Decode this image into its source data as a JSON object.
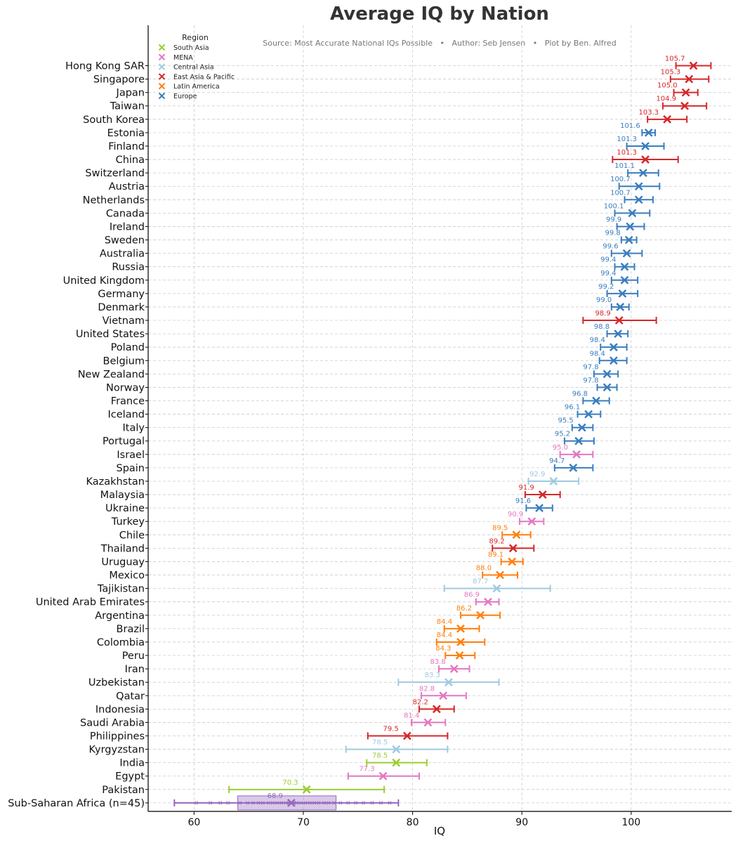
{
  "chart_data": {
    "type": "scatter",
    "title": "Average IQ by Nation",
    "subtitle": "Source: Most Accurate National IQs Possible   •   Author: Seb Jensen   •   Plot by Ben. Alfred",
    "xlabel": "IQ",
    "ylabel": "",
    "xlim": [
      55.8,
      109.2
    ],
    "xticks": [
      60,
      70,
      80,
      90,
      100
    ],
    "grid": true,
    "legend": {
      "title": "Region",
      "placement": "top-left",
      "entries": [
        {
          "name": "South Asia",
          "color": "#9acd32"
        },
        {
          "name": "MENA",
          "color": "#e377c2"
        },
        {
          "name": "Central Asia",
          "color": "#9ecae1"
        },
        {
          "name": "East Asia & Pacific",
          "color": "#d62728"
        },
        {
          "name": "Latin America",
          "color": "#ff7f0e"
        },
        {
          "name": "Europe",
          "color": "#3a7dbf"
        }
      ]
    },
    "region_colors": {
      "South Asia": "#9acd32",
      "MENA": "#e377c2",
      "Central Asia": "#9ecae1",
      "East Asia & Pacific": "#d62728",
      "Latin America": "#ff7f0e",
      "Europe": "#3a7dbf",
      "Sub-Saharan Africa": "#9467bd"
    },
    "points": [
      {
        "country": "Hong Kong SAR",
        "region": "East Asia & Pacific",
        "iq": 105.7,
        "low": 104.1,
        "high": 107.3
      },
      {
        "country": "Singapore",
        "region": "East Asia & Pacific",
        "iq": 105.3,
        "low": 103.6,
        "high": 107.1
      },
      {
        "country": "Japan",
        "region": "East Asia & Pacific",
        "iq": 105.0,
        "low": 103.9,
        "high": 106.1
      },
      {
        "country": "Taiwan",
        "region": "East Asia & Pacific",
        "iq": 104.9,
        "low": 102.9,
        "high": 106.9
      },
      {
        "country": "South Korea",
        "region": "East Asia & Pacific",
        "iq": 103.3,
        "low": 101.5,
        "high": 105.1
      },
      {
        "country": "Estonia",
        "region": "Europe",
        "iq": 101.6,
        "low": 101.0,
        "high": 102.2
      },
      {
        "country": "Finland",
        "region": "Europe",
        "iq": 101.3,
        "low": 99.6,
        "high": 103.0
      },
      {
        "country": "China",
        "region": "East Asia & Pacific",
        "iq": 101.3,
        "low": 98.3,
        "high": 104.3
      },
      {
        "country": "Switzerland",
        "region": "Europe",
        "iq": 101.1,
        "low": 99.7,
        "high": 102.5
      },
      {
        "country": "Austria",
        "region": "Europe",
        "iq": 100.7,
        "low": 98.9,
        "high": 102.6
      },
      {
        "country": "Netherlands",
        "region": "Europe",
        "iq": 100.7,
        "low": 99.4,
        "high": 102.0
      },
      {
        "country": "Canada",
        "region": "Europe",
        "iq": 100.1,
        "low": 98.5,
        "high": 101.7
      },
      {
        "country": "Ireland",
        "region": "Europe",
        "iq": 99.9,
        "low": 98.7,
        "high": 101.2
      },
      {
        "country": "Sweden",
        "region": "Europe",
        "iq": 99.8,
        "low": 99.1,
        "high": 100.5
      },
      {
        "country": "Australia",
        "region": "Europe",
        "iq": 99.6,
        "low": 98.2,
        "high": 101.0
      },
      {
        "country": "Russia",
        "region": "Europe",
        "iq": 99.4,
        "low": 98.5,
        "high": 100.3
      },
      {
        "country": "United Kingdom",
        "region": "Europe",
        "iq": 99.4,
        "low": 98.2,
        "high": 100.6
      },
      {
        "country": "Germany",
        "region": "Europe",
        "iq": 99.2,
        "low": 97.8,
        "high": 100.6
      },
      {
        "country": "Denmark",
        "region": "Europe",
        "iq": 99.0,
        "low": 98.2,
        "high": 99.8
      },
      {
        "country": "Vietnam",
        "region": "East Asia & Pacific",
        "iq": 98.9,
        "low": 95.6,
        "high": 102.3
      },
      {
        "country": "United States",
        "region": "Europe",
        "iq": 98.8,
        "low": 97.8,
        "high": 99.7
      },
      {
        "country": "Poland",
        "region": "Europe",
        "iq": 98.4,
        "low": 97.2,
        "high": 99.6
      },
      {
        "country": "Belgium",
        "region": "Europe",
        "iq": 98.4,
        "low": 97.1,
        "high": 99.6
      },
      {
        "country": "New Zealand",
        "region": "Europe",
        "iq": 97.8,
        "low": 96.6,
        "high": 98.8
      },
      {
        "country": "Norway",
        "region": "Europe",
        "iq": 97.8,
        "low": 96.9,
        "high": 98.7
      },
      {
        "country": "France",
        "region": "Europe",
        "iq": 96.8,
        "low": 95.6,
        "high": 98.0
      },
      {
        "country": "Iceland",
        "region": "Europe",
        "iq": 96.1,
        "low": 95.1,
        "high": 97.2
      },
      {
        "country": "Italy",
        "region": "Europe",
        "iq": 95.5,
        "low": 94.6,
        "high": 96.5
      },
      {
        "country": "Portugal",
        "region": "Europe",
        "iq": 95.2,
        "low": 93.9,
        "high": 96.6
      },
      {
        "country": "Israel",
        "region": "MENA",
        "iq": 95.0,
        "low": 93.5,
        "high": 96.5
      },
      {
        "country": "Spain",
        "region": "Europe",
        "iq": 94.7,
        "low": 93.0,
        "high": 96.5
      },
      {
        "country": "Kazakhstan",
        "region": "Central Asia",
        "iq": 92.9,
        "low": 90.6,
        "high": 95.2
      },
      {
        "country": "Malaysia",
        "region": "East Asia & Pacific",
        "iq": 91.9,
        "low": 90.3,
        "high": 93.5
      },
      {
        "country": "Ukraine",
        "region": "Europe",
        "iq": 91.6,
        "low": 90.4,
        "high": 92.8
      },
      {
        "country": "Turkey",
        "region": "MENA",
        "iq": 90.9,
        "low": 89.8,
        "high": 92.0
      },
      {
        "country": "Chile",
        "region": "Latin America",
        "iq": 89.5,
        "low": 88.2,
        "high": 90.8
      },
      {
        "country": "Thailand",
        "region": "East Asia & Pacific",
        "iq": 89.2,
        "low": 87.3,
        "high": 91.1
      },
      {
        "country": "Uruguay",
        "region": "Latin America",
        "iq": 89.1,
        "low": 88.1,
        "high": 90.1
      },
      {
        "country": "Mexico",
        "region": "Latin America",
        "iq": 88.0,
        "low": 86.4,
        "high": 89.6
      },
      {
        "country": "Tajikistan",
        "region": "Central Asia",
        "iq": 87.7,
        "low": 82.9,
        "high": 92.6
      },
      {
        "country": "United Arab Emirates",
        "region": "MENA",
        "iq": 86.9,
        "low": 85.8,
        "high": 87.9
      },
      {
        "country": "Argentina",
        "region": "Latin America",
        "iq": 86.2,
        "low": 84.4,
        "high": 88.0
      },
      {
        "country": "Brazil",
        "region": "Latin America",
        "iq": 84.4,
        "low": 82.9,
        "high": 86.1
      },
      {
        "country": "Colombia",
        "region": "Latin America",
        "iq": 84.4,
        "low": 82.2,
        "high": 86.6
      },
      {
        "country": "Peru",
        "region": "Latin America",
        "iq": 84.3,
        "low": 83.0,
        "high": 85.7
      },
      {
        "country": "Iran",
        "region": "MENA",
        "iq": 83.8,
        "low": 82.4,
        "high": 85.2
      },
      {
        "country": "Uzbekistan",
        "region": "Central Asia",
        "iq": 83.3,
        "low": 78.7,
        "high": 87.9
      },
      {
        "country": "Qatar",
        "region": "MENA",
        "iq": 82.8,
        "low": 80.8,
        "high": 84.9
      },
      {
        "country": "Indonesia",
        "region": "East Asia & Pacific",
        "iq": 82.2,
        "low": 80.6,
        "high": 83.8
      },
      {
        "country": "Saudi Arabia",
        "region": "MENA",
        "iq": 81.4,
        "low": 79.9,
        "high": 83.0
      },
      {
        "country": "Philippines",
        "region": "East Asia & Pacific",
        "iq": 79.5,
        "low": 75.9,
        "high": 83.2
      },
      {
        "country": "Kyrgyzstan",
        "region": "Central Asia",
        "iq": 78.5,
        "low": 73.9,
        "high": 83.2
      },
      {
        "country": "India",
        "region": "South Asia",
        "iq": 78.5,
        "low": 75.8,
        "high": 81.3
      },
      {
        "country": "Egypt",
        "region": "MENA",
        "iq": 77.3,
        "low": 74.1,
        "high": 80.6
      },
      {
        "country": "Pakistan",
        "region": "South Asia",
        "iq": 70.3,
        "low": 63.2,
        "high": 77.4
      },
      {
        "country": "Sub-Saharan Africa (n=45)",
        "region": "Sub-Saharan Africa",
        "iq": 68.9,
        "low": 58.2,
        "high": 78.7,
        "box": [
          64.0,
          73.0
        ],
        "sample_points": [
          60.2,
          61.5,
          62.4,
          63.1,
          64.2,
          64.9,
          65.4,
          65.9,
          66.3,
          66.8,
          67.2,
          67.6,
          68.0,
          68.4,
          68.7,
          69.1,
          69.4,
          69.8,
          70.2,
          70.6,
          71.0,
          71.4,
          71.9,
          72.3,
          72.8,
          73.4,
          74.1,
          74.8,
          75.5,
          76.3,
          77.1,
          77.9
        ]
      }
    ]
  }
}
